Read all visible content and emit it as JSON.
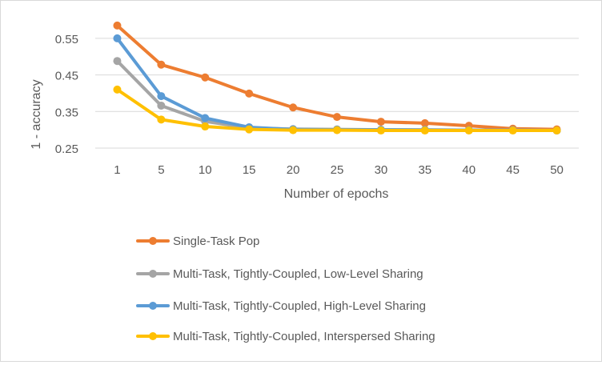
{
  "chart_data": {
    "type": "line",
    "title": "",
    "xlabel": "Number of epochs",
    "ylabel": "1 - accuracy",
    "categories": [
      "1",
      "5",
      "10",
      "15",
      "20",
      "25",
      "30",
      "35",
      "40",
      "45",
      "50"
    ],
    "ylim": [
      0.25,
      0.6
    ],
    "yticks": [
      "0.25",
      "0.35",
      "0.45",
      "0.55"
    ],
    "grid": true,
    "legend_position": "bottom",
    "series": [
      {
        "name": "Single-Task Pop",
        "color": "#ED7D31",
        "values": [
          0.585,
          0.478,
          0.443,
          0.399,
          0.361,
          0.335,
          0.322,
          0.318,
          0.311,
          0.303,
          0.301
        ]
      },
      {
        "name": "Multi-Task, Tightly-Coupled, Low-Level Sharing",
        "color": "#A5A5A5",
        "values": [
          0.488,
          0.366,
          0.323,
          0.305,
          0.302,
          0.301,
          0.3,
          0.3,
          0.299,
          0.299,
          0.298
        ]
      },
      {
        "name": "Multi-Task, Tightly-Coupled, High-Level Sharing",
        "color": "#5B9BD5",
        "values": [
          0.55,
          0.392,
          0.332,
          0.307,
          0.301,
          0.3,
          0.3,
          0.299,
          0.299,
          0.299,
          0.298
        ]
      },
      {
        "name": "Multi-Task, Tightly-Coupled, Interspersed Sharing",
        "color": "#FFC000",
        "values": [
          0.41,
          0.328,
          0.309,
          0.301,
          0.299,
          0.299,
          0.298,
          0.298,
          0.298,
          0.298,
          0.298
        ]
      }
    ]
  }
}
